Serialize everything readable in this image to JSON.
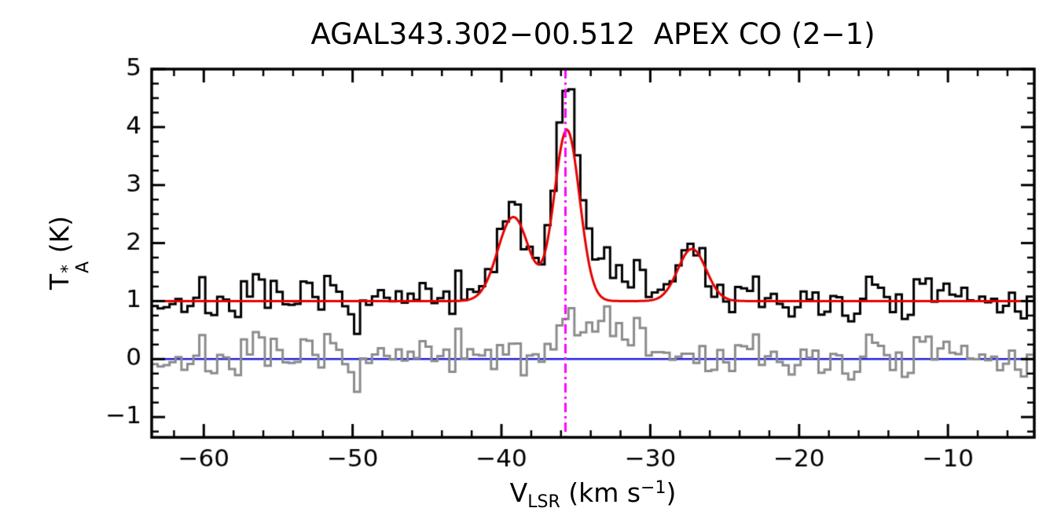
{
  "chart_data": {
    "type": "line",
    "title": "AGAL343.302−00.512  APEX CO (2−1)",
    "ylabel": {
      "base": "T",
      "sup": "*",
      "sub": "A",
      "rest": " (K)"
    },
    "xlabel": {
      "base": "V",
      "sub": "LSR",
      "mid": " (km s",
      "sup": "−1",
      "end": ")"
    },
    "xlim": [
      -63.5,
      -4.2
    ],
    "ylim": [
      -1.35,
      5.0
    ],
    "xticks": {
      "major": [
        -60,
        -50,
        -40,
        -30,
        -20,
        -10
      ],
      "labels": [
        "−60",
        "−50",
        "−40",
        "−30",
        "−20",
        "−10"
      ],
      "minor_step": 2
    },
    "yticks": {
      "major": [
        -1,
        0,
        1,
        2,
        3,
        4,
        5
      ],
      "labels": [
        "−1",
        "0",
        "1",
        "2",
        "3",
        "4",
        "5"
      ],
      "minor_step": 0.25
    },
    "series_names": [
      "spectrum",
      "residual",
      "gaussian_fit"
    ],
    "baseline": 1.0,
    "fit_gaussians": [
      {
        "center": -39.2,
        "amp": 1.45,
        "sigma": 1.05
      },
      {
        "center": -35.6,
        "amp": 2.95,
        "sigma": 0.85
      },
      {
        "center": -27.2,
        "amp": 0.9,
        "sigma": 0.95
      }
    ],
    "data_extra_gaussians": [
      {
        "center": -33.5,
        "amp": 0.7,
        "sigma": 2.0
      },
      {
        "center": -35.8,
        "amp": 0.4,
        "sigma": 0.4
      }
    ],
    "channel_width": 0.4,
    "noise_rms": 0.2,
    "noise_seed": 7,
    "zero_line_y": 0,
    "vline_x": -35.7,
    "colors": {
      "spectrum": "#000000",
      "residual": "#8c8c8c",
      "fit": "#e60000",
      "zero_line": "#2222dd",
      "vline": "#ff00ff",
      "axis": "#000000",
      "background": "#ffffff"
    }
  }
}
